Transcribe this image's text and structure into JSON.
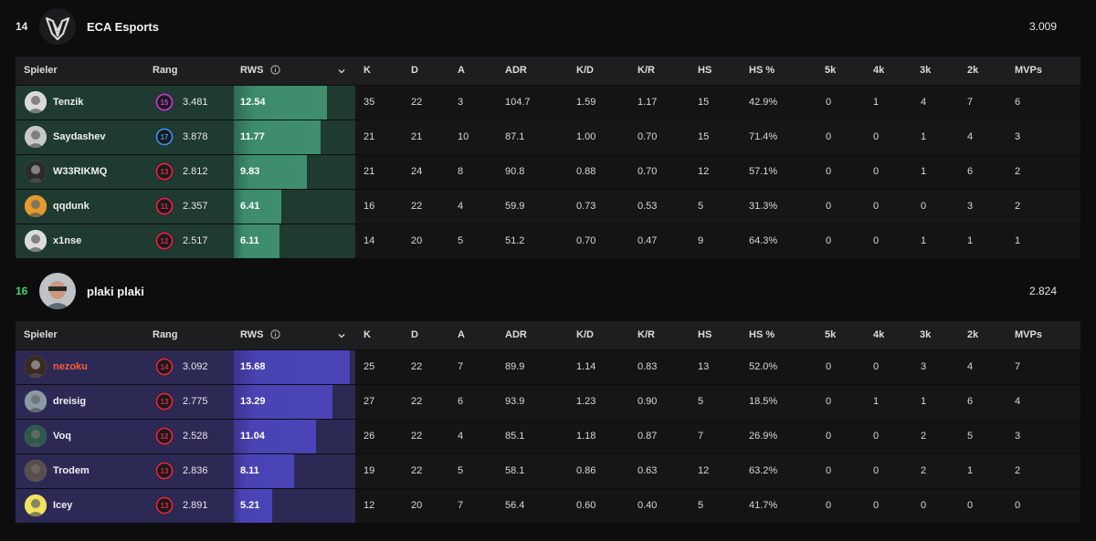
{
  "columns": {
    "spieler": "Spieler",
    "rang": "Rang",
    "rws": "RWS",
    "k": "K",
    "d": "D",
    "a": "A",
    "adr": "ADR",
    "kd": "K/D",
    "kr": "K/R",
    "hs": "HS",
    "hsp": "HS %",
    "k5": "5k",
    "k4": "4k",
    "k3": "3k",
    "k2": "2k",
    "mvps": "MVPs"
  },
  "teams": [
    {
      "rank": "14",
      "name": "ECA Esports",
      "score": "3.009",
      "rank_color": "#e6e6e6",
      "players": [
        {
          "name": "Tenzik",
          "level": "15",
          "level_color": "#c23bd4",
          "rating": "3.481",
          "rws": "12.54",
          "rws_value": 12.54,
          "k": "35",
          "d": "22",
          "a": "3",
          "adr": "104.7",
          "kd": "1.59",
          "kr": "1.17",
          "hs": "15",
          "hsp": "42.9%",
          "k5": "0",
          "k4": "1",
          "k3": "4",
          "k2": "7",
          "mvps": "6"
        },
        {
          "name": "Saydashev",
          "level": "17",
          "level_color": "#3b8ee8",
          "rating": "3.878",
          "rws": "11.77",
          "rws_value": 11.77,
          "k": "21",
          "d": "21",
          "a": "10",
          "adr": "87.1",
          "kd": "1.00",
          "kr": "0.70",
          "hs": "15",
          "hsp": "71.4%",
          "k5": "0",
          "k4": "0",
          "k3": "1",
          "k2": "4",
          "mvps": "3"
        },
        {
          "name": "W33RIKMQ",
          "level": "13",
          "level_color": "#e0254b",
          "rating": "2.812",
          "rws": "9.83",
          "rws_value": 9.83,
          "k": "21",
          "d": "24",
          "a": "8",
          "adr": "90.8",
          "kd": "0.88",
          "kr": "0.70",
          "hs": "12",
          "hsp": "57.1%",
          "k5": "0",
          "k4": "0",
          "k3": "1",
          "k2": "6",
          "mvps": "2"
        },
        {
          "name": "qqdunk",
          "level": "11",
          "level_color": "#e0254b",
          "rating": "2.357",
          "rws": "6.41",
          "rws_value": 6.41,
          "k": "16",
          "d": "22",
          "a": "4",
          "adr": "59.9",
          "kd": "0.73",
          "kr": "0.53",
          "hs": "5",
          "hsp": "31.3%",
          "k5": "0",
          "k4": "0",
          "k3": "0",
          "k2": "3",
          "mvps": "2"
        },
        {
          "name": "x1nse",
          "level": "12",
          "level_color": "#e0254b",
          "rating": "2.517",
          "rws": "6.11",
          "rws_value": 6.11,
          "k": "14",
          "d": "20",
          "a": "5",
          "adr": "51.2",
          "kd": "0.70",
          "kr": "0.47",
          "hs": "9",
          "hsp": "64.3%",
          "k5": "0",
          "k4": "0",
          "k3": "1",
          "k2": "1",
          "mvps": "1"
        }
      ]
    },
    {
      "rank": "16",
      "name": "plaki plaki",
      "score": "2.824",
      "rank_color": "#3fd46a",
      "players": [
        {
          "name": "nezoku",
          "highlight": true,
          "level": "14",
          "level_color": "#e0254b",
          "rating": "3.092",
          "rws": "15.68",
          "rws_value": 15.68,
          "k": "25",
          "d": "22",
          "a": "7",
          "adr": "89.9",
          "kd": "1.14",
          "kr": "0.83",
          "hs": "13",
          "hsp": "52.0%",
          "k5": "0",
          "k4": "0",
          "k3": "3",
          "k2": "4",
          "mvps": "7"
        },
        {
          "name": "dreisig",
          "level": "13",
          "level_color": "#e0254b",
          "rating": "2.775",
          "rws": "13.29",
          "rws_value": 13.29,
          "k": "27",
          "d": "22",
          "a": "6",
          "adr": "93.9",
          "kd": "1.23",
          "kr": "0.90",
          "hs": "5",
          "hsp": "18.5%",
          "k5": "0",
          "k4": "1",
          "k3": "1",
          "k2": "6",
          "mvps": "4"
        },
        {
          "name": "Voq",
          "level": "12",
          "level_color": "#e0254b",
          "rating": "2.528",
          "rws": "11.04",
          "rws_value": 11.04,
          "k": "26",
          "d": "22",
          "a": "4",
          "adr": "85.1",
          "kd": "1.18",
          "kr": "0.87",
          "hs": "7",
          "hsp": "26.9%",
          "k5": "0",
          "k4": "0",
          "k3": "2",
          "k2": "5",
          "mvps": "3"
        },
        {
          "name": "Trodem",
          "level": "13",
          "level_color": "#e0254b",
          "rating": "2.836",
          "rws": "8.11",
          "rws_value": 8.11,
          "k": "19",
          "d": "22",
          "a": "5",
          "adr": "58.1",
          "kd": "0.86",
          "kr": "0.63",
          "hs": "12",
          "hsp": "63.2%",
          "k5": "0",
          "k4": "0",
          "k3": "2",
          "k2": "1",
          "mvps": "2"
        },
        {
          "name": "Icey",
          "level": "13",
          "level_color": "#e0254b",
          "rating": "2.891",
          "rws": "5.21",
          "rws_value": 5.21,
          "k": "12",
          "d": "20",
          "a": "7",
          "adr": "56.4",
          "kd": "0.60",
          "kr": "0.40",
          "hs": "5",
          "hsp": "41.7%",
          "k5": "0",
          "k4": "0",
          "k3": "0",
          "k2": "0",
          "mvps": "0"
        }
      ]
    }
  ],
  "rws_scale_max": 16.4,
  "icons": {
    "info": "info-icon",
    "sort": "chevron-down-icon"
  }
}
